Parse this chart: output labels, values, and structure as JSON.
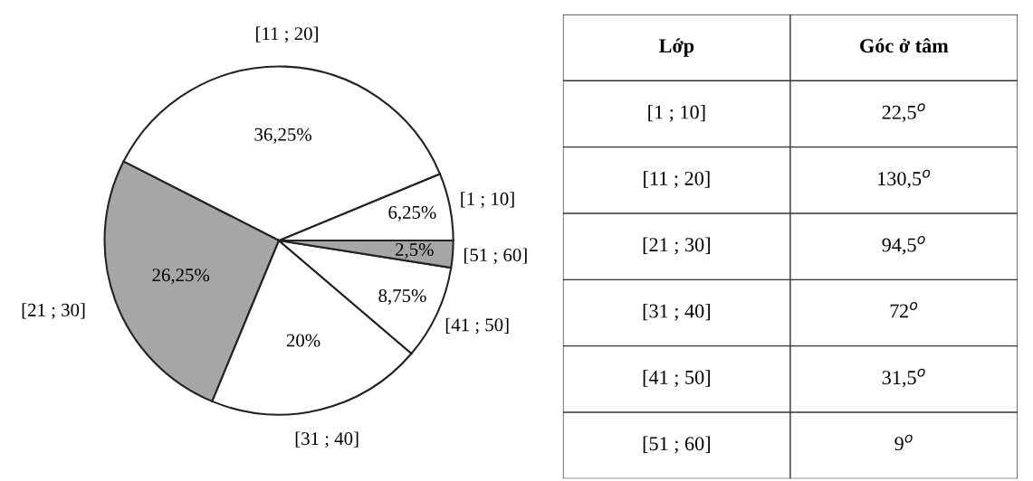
{
  "chart_data": [
    {
      "type": "pie",
      "categories": [
        "[1 ; 10]",
        "[11 ; 20]",
        "[21 ; 30]",
        "[31 ; 40]",
        "[41 ; 50]",
        "[51 ; 60]"
      ],
      "values": [
        6.25,
        36.25,
        26.25,
        20,
        8.75,
        2.5
      ],
      "value_labels": [
        "6,25%",
        "36,25%",
        "26,25%",
        "20%",
        "8,75%",
        "2,5%"
      ],
      "colors": [
        "#ffffff",
        "#ffffff",
        "#a6a6a6",
        "#ffffff",
        "#ffffff",
        "#a6a6a6"
      ],
      "legend": false
    },
    {
      "type": "other",
      "categories": [
        "Lớp",
        "Góc ở tâm"
      ],
      "annotations": [
        "[1 ; 10]",
        "22,5$^{o}$",
        "[11 ; 20]",
        "130,5$^{o}$",
        "[21 ; 30]",
        "94,5$^{o}$",
        "[31 ; 40]",
        "72$^{o}$",
        "[41 ; 50]",
        "31,5$^{o}$",
        "[51 ; 60]",
        "9$^{o}$"
      ]
    }
  ]
}
